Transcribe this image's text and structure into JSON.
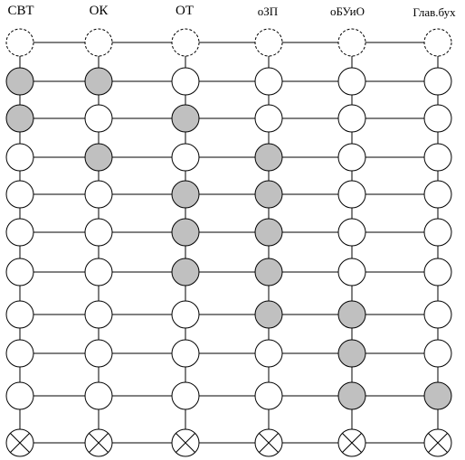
{
  "columns": [
    "СВТ",
    "ОК",
    "ОТ",
    "оЗП",
    "оБУиО",
    "Глав.бух"
  ],
  "colors": {
    "line": "#000000",
    "node_fill": "#ffffff",
    "node_shaded": "#c0c0c0",
    "node_dashed_stroke": "#000000"
  },
  "rows": [
    {
      "kind": "dashed",
      "cells": [
        0,
        0,
        0,
        0,
        0,
        0
      ]
    },
    {
      "kind": "state",
      "cells": [
        1,
        1,
        0,
        0,
        0,
        0
      ]
    },
    {
      "kind": "state",
      "cells": [
        1,
        0,
        1,
        0,
        0,
        0
      ]
    },
    {
      "kind": "state",
      "cells": [
        0,
        1,
        0,
        1,
        0,
        0
      ]
    },
    {
      "kind": "state",
      "cells": [
        0,
        0,
        1,
        1,
        0,
        0
      ]
    },
    {
      "kind": "state",
      "cells": [
        0,
        0,
        1,
        1,
        0,
        0
      ]
    },
    {
      "kind": "state",
      "cells": [
        0,
        0,
        1,
        1,
        0,
        0
      ]
    },
    {
      "kind": "state",
      "cells": [
        0,
        0,
        0,
        1,
        1,
        0
      ]
    },
    {
      "kind": "state",
      "cells": [
        0,
        0,
        0,
        0,
        1,
        0
      ]
    },
    {
      "kind": "state",
      "cells": [
        0,
        0,
        0,
        0,
        1,
        1
      ]
    },
    {
      "kind": "terminal",
      "cells": [
        0,
        0,
        0,
        0,
        0,
        0
      ]
    }
  ]
}
